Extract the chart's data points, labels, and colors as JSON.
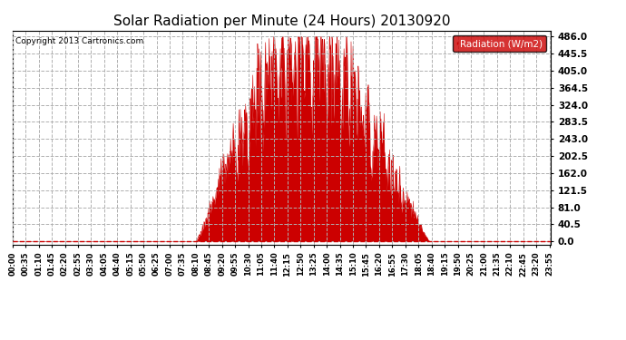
{
  "title": "Solar Radiation per Minute (24 Hours) 20130920",
  "copyright_text": "Copyright 2013 Cartronics.com",
  "legend_label": "Radiation (W/m2)",
  "legend_bg": "#cc0000",
  "legend_fg": "#ffffff",
  "line_color": "#cc0000",
  "fill_color": "#cc0000",
  "background_color": "#ffffff",
  "grid_color": "#b0b0b0",
  "ylim": [
    -5.0,
    500.0
  ],
  "yticks": [
    0.0,
    40.5,
    81.0,
    121.5,
    162.0,
    202.5,
    243.0,
    283.5,
    324.0,
    364.5,
    405.0,
    445.5,
    486.0
  ],
  "total_minutes": 1440,
  "sunrise_minute": 490,
  "sunset_minute": 1115,
  "peak_minute": 770,
  "peak_value": 486.0,
  "seed": 12345
}
